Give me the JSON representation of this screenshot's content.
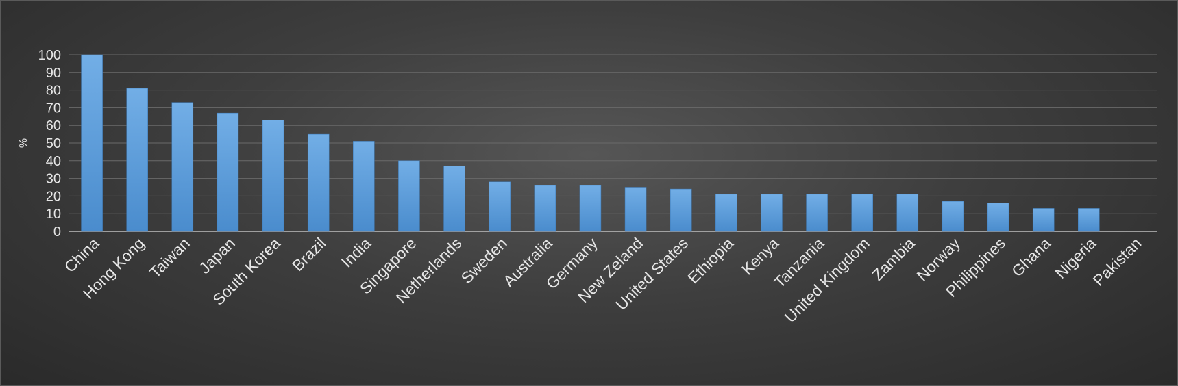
{
  "chart_data": {
    "type": "bar",
    "title": "",
    "xlabel": "",
    "ylabel": "%",
    "ylim": [
      0,
      100
    ],
    "yticks": [
      0,
      10,
      20,
      30,
      40,
      50,
      60,
      70,
      80,
      90,
      100
    ],
    "grid": true,
    "legend": "none",
    "bar_color": "#5b9bd5",
    "categories": [
      "China",
      "Hong Kong",
      "Taiwan",
      "Japan",
      "South Korea",
      "Brazil",
      "India",
      "Singapore",
      "Netherlands",
      "Sweden",
      "Australia",
      "Germany",
      "New Zeland",
      "United States",
      "Ethiopia",
      "Kenya",
      "Tanzania",
      "United Kingdom",
      "Zambia",
      "Norway",
      "Philippines",
      "Ghana",
      "Nigeria",
      "Pakistan"
    ],
    "values": [
      100,
      81,
      73,
      67,
      63,
      55,
      51,
      40,
      37,
      28,
      26,
      26,
      25,
      24,
      21,
      21,
      21,
      21,
      21,
      17,
      16,
      13,
      13,
      0
    ]
  }
}
